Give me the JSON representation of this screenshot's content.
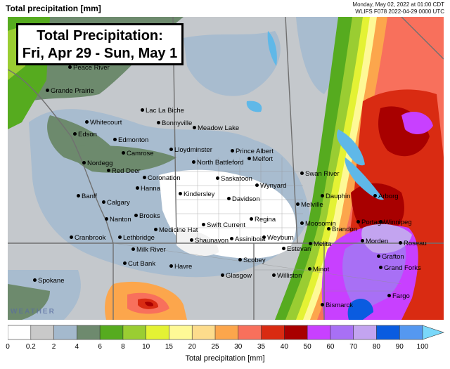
{
  "header": {
    "title": "Total precipitation [mm]",
    "valid_time": "Monday, May 02, 2022 at 01:00 CDT",
    "model_run": "WLIFS F078 2022-04-29 0000 UTC"
  },
  "map_title": {
    "line1": "Total Precipitation:",
    "line2": "Fri, Apr 29 - Sun, May 1"
  },
  "watermark": "WEATHER",
  "cities": [
    "Peace River",
    "Grande Prairie",
    "Lac La Biche",
    "Whitecourt",
    "Bonnyville",
    "Edson",
    "Meadow Lake",
    "Edmonton",
    "Lloydminster",
    "Prince Albert",
    "Camrose",
    "Nordegg",
    "North Battleford",
    "Melfort",
    "Red Deer",
    "Swan River",
    "Coronation",
    "Saskatoon",
    "Hanna",
    "Wynyard",
    "Kindersley",
    "Dauphin",
    "Banff",
    "Calgary",
    "Davidson",
    "Arborg",
    "Melville",
    "Brooks",
    "Regina",
    "Moosomin",
    "Nanton",
    "Swift Current",
    "Brandon",
    "Portage",
    "Winnipeg",
    "Medicine Hat",
    "Cranbrook",
    "Lethbridge",
    "Shaunavon",
    "Assiniboia",
    "Weyburn",
    "Melita",
    "Morden",
    "Roseau",
    "Milk River",
    "Estevan",
    "Cut Bank",
    "Havre",
    "Scobey",
    "Grafton",
    "Minot",
    "Grand Forks",
    "Glasgow",
    "Williston",
    "Spokane",
    "Fargo",
    "Bismarck"
  ],
  "legend": {
    "label": "Total precipitation [mm]",
    "ticks": [
      "0",
      "0.2",
      "2",
      "4",
      "6",
      "8",
      "10",
      "15",
      "20",
      "25",
      "30",
      "35",
      "40",
      "50",
      "60",
      "70",
      "80",
      "90",
      "100"
    ],
    "colors": [
      "#ffffff",
      "#c9c9c9",
      "#a4b9cd",
      "#6e8a6e",
      "#56ab1f",
      "#9acd32",
      "#e4f234",
      "#fef996",
      "#fddc8c",
      "#fca64c",
      "#f8705c",
      "#d92b12",
      "#a80000",
      "#c840ff",
      "#a870f5",
      "#c3a4f0",
      "#0a5ce0",
      "#5598f0",
      "#7ad8fa"
    ]
  }
}
